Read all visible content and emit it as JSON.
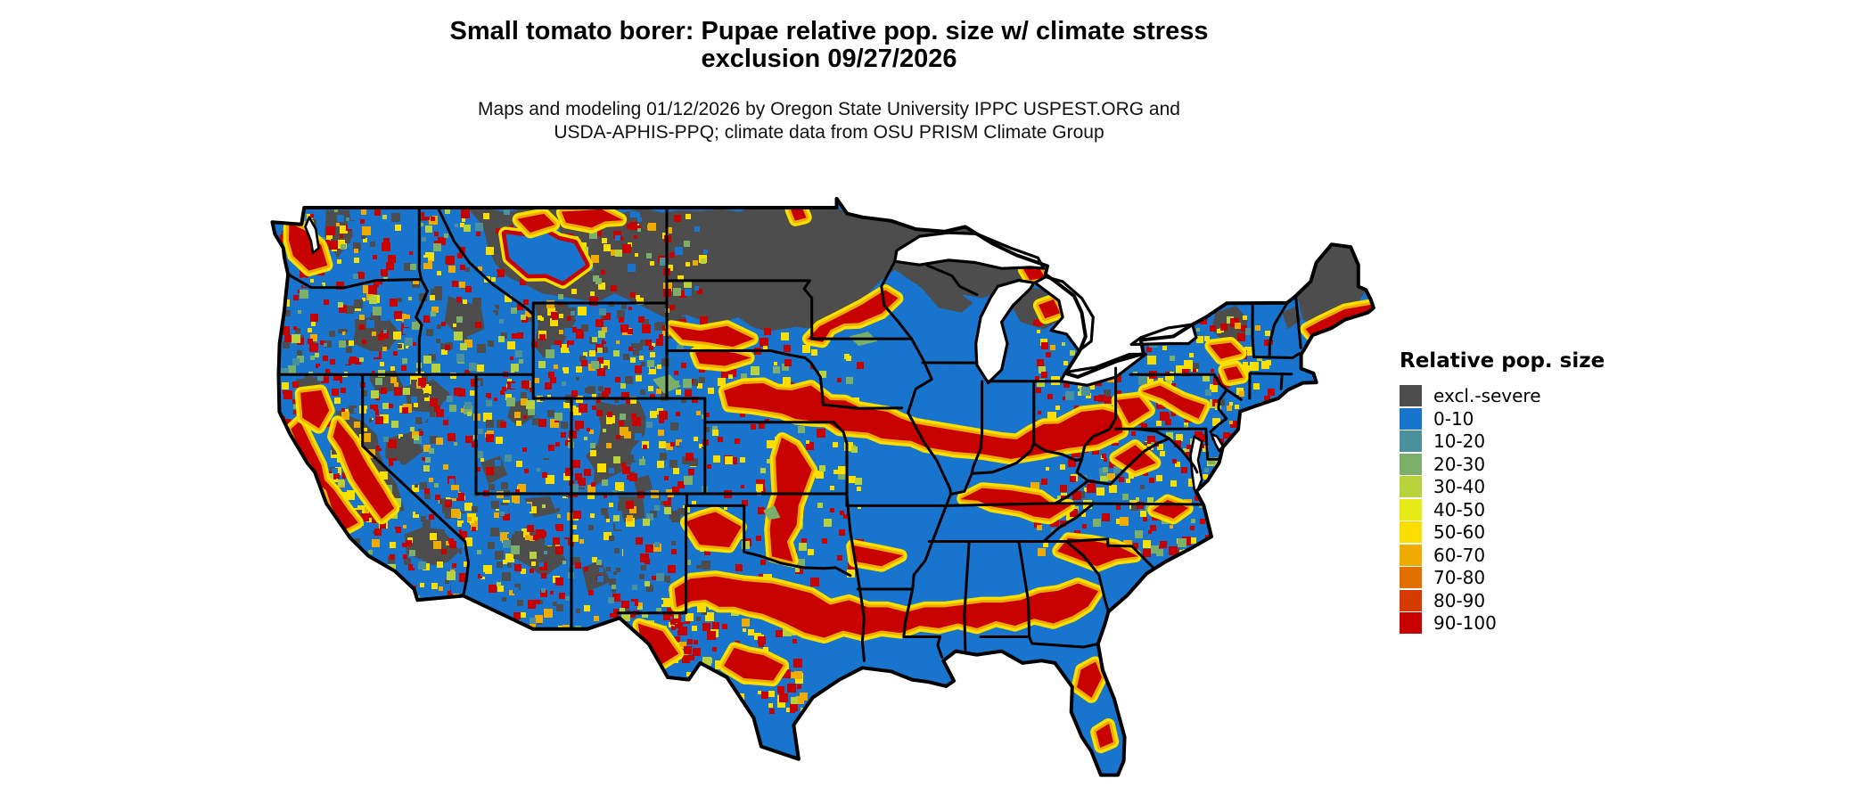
{
  "title": {
    "line1": "Small tomato borer: Pupae relative pop. size w/ climate stress",
    "line2": "exclusion 09/27/2026"
  },
  "subtitle": {
    "line1": "Maps and modeling 01/12/2026 by Oregon State University IPPC USPEST.ORG and",
    "line2": "USDA-APHIS-PPQ; climate data from OSU PRISM Climate Group"
  },
  "legend": {
    "title": "Relative pop. size",
    "items": [
      {
        "label": "excl.-severe",
        "color": "#4d4d4d"
      },
      {
        "label": "0-10",
        "color": "#1874cd"
      },
      {
        "label": "10-20",
        "color": "#4a919d"
      },
      {
        "label": "20-30",
        "color": "#7cb06a"
      },
      {
        "label": "30-40",
        "color": "#b8d23e"
      },
      {
        "label": "40-50",
        "color": "#e6ea16"
      },
      {
        "label": "50-60",
        "color": "#f9df00"
      },
      {
        "label": "60-70",
        "color": "#f0ab00"
      },
      {
        "label": "70-80",
        "color": "#e17000"
      },
      {
        "label": "80-90",
        "color": "#d63b01"
      },
      {
        "label": "90-100",
        "color": "#c80101"
      }
    ]
  },
  "map": {
    "area": "Continental United States (lower 48 states)",
    "state_border_color": "#000000",
    "water_color": "#ffffff",
    "water_bodies": [
      "Lake Superior",
      "Lake Michigan",
      "Lake Huron",
      "Lake Erie",
      "Lake Ontario",
      "Puget Sound",
      "Chesapeake Bay",
      "Delaware Bay"
    ]
  }
}
